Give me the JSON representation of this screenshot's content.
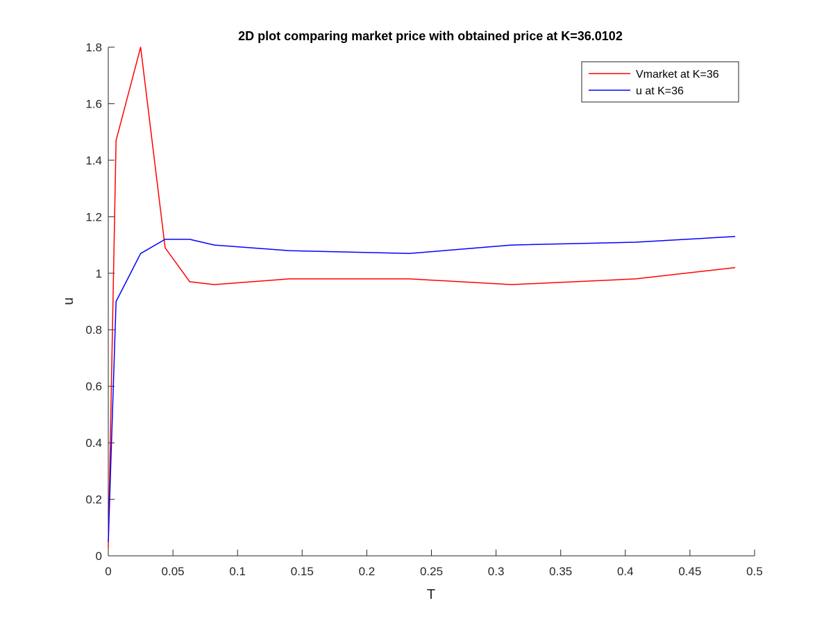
{
  "chart_data": {
    "type": "line",
    "title": "2D plot comparing market price with obtained price at K=36.0102",
    "xlabel": "T",
    "ylabel": "u",
    "xlim": [
      0,
      0.5
    ],
    "ylim": [
      0,
      1.8
    ],
    "xticks": [
      0,
      0.05,
      0.1,
      0.15,
      0.2,
      0.25,
      0.3,
      0.35,
      0.4,
      0.45,
      0.5
    ],
    "xtick_labels": [
      "0",
      "0.05",
      "0.1",
      "0.15",
      "0.2",
      "0.25",
      "0.3",
      "0.35",
      "0.4",
      "0.45",
      "0.5"
    ],
    "yticks": [
      0,
      0.2,
      0.4,
      0.6,
      0.8,
      1.0,
      1.2,
      1.4,
      1.6,
      1.8
    ],
    "ytick_labels": [
      "0",
      "0.2",
      "0.4",
      "0.6",
      "0.8",
      "1",
      "1.2",
      "1.4",
      "1.6",
      "1.8"
    ],
    "grid": false,
    "legend_position": "top-right",
    "series": [
      {
        "name": "Vmarket at K=36",
        "color": "#ff0000",
        "x": [
          0,
          0.006,
          0.025,
          0.044,
          0.063,
          0.082,
          0.14,
          0.233,
          0.312,
          0.408,
          0.485
        ],
        "y": [
          0.03,
          1.47,
          1.8,
          1.09,
          0.97,
          0.96,
          0.98,
          0.98,
          0.96,
          0.98,
          1.02
        ]
      },
      {
        "name": "u at K=36",
        "color": "#0000ff",
        "x": [
          0,
          0.006,
          0.025,
          0.044,
          0.063,
          0.082,
          0.14,
          0.233,
          0.312,
          0.408,
          0.485
        ],
        "y": [
          0.05,
          0.9,
          1.07,
          1.12,
          1.12,
          1.1,
          1.08,
          1.07,
          1.1,
          1.11,
          1.13
        ]
      }
    ]
  }
}
